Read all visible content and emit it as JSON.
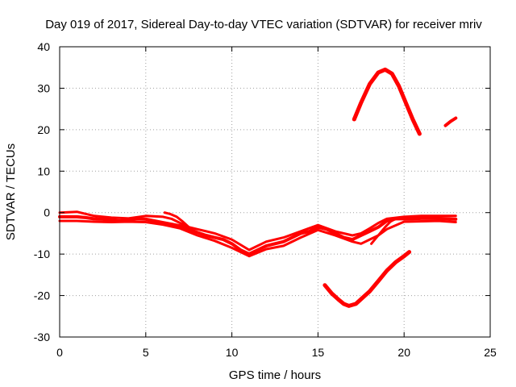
{
  "chart_data": {
    "type": "line",
    "title": "Day 019 of 2017, Sidereal Day-to-day VTEC variation (SDTVAR) for receiver mriv",
    "xlabel": "GPS time / hours",
    "ylabel": "SDTVAR / TECUs",
    "xlim": [
      0,
      25
    ],
    "ylim": [
      -30,
      40
    ],
    "xticks": [
      0,
      5,
      10,
      15,
      20,
      25
    ],
    "yticks": [
      -30,
      -20,
      -10,
      0,
      10,
      20,
      30,
      40
    ],
    "grid": true,
    "color": "#ff0000",
    "series": [
      {
        "name": "main-band",
        "thickness": 4,
        "x": [
          0.0,
          0.5,
          1.0,
          1.5,
          2.0,
          2.5,
          3.0,
          3.5,
          4.0,
          4.5,
          5.0,
          5.5,
          6.0,
          6.5,
          7.0,
          7.5,
          8.0,
          8.5,
          9.0,
          9.5,
          10.0,
          10.5,
          11.0,
          11.5,
          12.0,
          12.5,
          13.0,
          13.5,
          14.0,
          14.5,
          15.0,
          15.5,
          16.0,
          16.5,
          17.0,
          17.5,
          18.0,
          18.5,
          19.0,
          19.5,
          20.0,
          20.5,
          21.0,
          21.5,
          22.0,
          22.5,
          23.0
        ],
        "values": [
          -1.0,
          -1.0,
          -1.0,
          -1.2,
          -1.5,
          -1.6,
          -1.8,
          -2.0,
          -1.8,
          -1.5,
          -1.6,
          -2.0,
          -2.4,
          -2.8,
          -3.2,
          -4.0,
          -4.8,
          -5.5,
          -6.0,
          -6.5,
          -7.5,
          -9.0,
          -10.0,
          -9.0,
          -8.0,
          -7.5,
          -7.0,
          -6.0,
          -5.0,
          -4.5,
          -3.5,
          -4.0,
          -5.0,
          -6.0,
          -6.5,
          -5.5,
          -4.5,
          -3.5,
          -2.0,
          -1.5,
          -1.5,
          -1.5,
          -1.4,
          -1.4,
          -1.4,
          -1.5,
          -1.6
        ]
      },
      {
        "name": "band-upper-jitter",
        "thickness": 3,
        "x": [
          0.0,
          1.0,
          2.0,
          3.0,
          4.0,
          5.0,
          6.0,
          6.5,
          7.0,
          7.5,
          8.0,
          9.0,
          10.0,
          11.0,
          12.0,
          13.0,
          14.0,
          15.0,
          16.0,
          17.0,
          17.5,
          18.0,
          18.5,
          19.0,
          20.0,
          21.0,
          22.0,
          23.0
        ],
        "values": [
          0.0,
          0.2,
          -0.8,
          -1.2,
          -1.4,
          -0.8,
          -1.0,
          -1.5,
          -2.5,
          -3.5,
          -4.0,
          -5.0,
          -6.5,
          -9.0,
          -7.0,
          -6.0,
          -4.5,
          -3.0,
          -4.5,
          -5.5,
          -5.0,
          -3.8,
          -2.5,
          -1.5,
          -1.0,
          -0.8,
          -0.8,
          -0.8
        ]
      },
      {
        "name": "band-lower-jitter",
        "thickness": 3,
        "x": [
          0.0,
          1.0,
          2.0,
          3.0,
          4.0,
          5.0,
          6.0,
          7.0,
          8.0,
          9.0,
          10.0,
          11.0,
          12.0,
          13.0,
          14.0,
          15.0,
          16.0,
          17.0,
          17.5,
          18.0,
          18.5,
          19.0,
          20.0,
          21.0,
          22.0,
          23.0
        ],
        "values": [
          -2.0,
          -2.0,
          -2.2,
          -2.3,
          -2.2,
          -2.3,
          -2.9,
          -3.8,
          -5.5,
          -6.8,
          -8.5,
          -10.5,
          -8.8,
          -8.0,
          -6.0,
          -4.2,
          -5.5,
          -7.0,
          -7.5,
          -6.5,
          -5.5,
          -4.0,
          -2.2,
          -2.1,
          -2.0,
          -2.3
        ]
      },
      {
        "name": "spur-6h",
        "thickness": 3,
        "x": [
          6.1,
          6.4,
          6.8,
          7.1,
          7.5
        ],
        "values": [
          0.0,
          -0.3,
          -1.0,
          -2.0,
          -3.5
        ]
      },
      {
        "name": "spur-18h",
        "thickness": 3,
        "x": [
          18.1,
          18.3,
          18.6,
          18.9,
          19.2,
          19.5
        ],
        "values": [
          -7.5,
          -6.5,
          -5.0,
          -3.5,
          -2.2,
          -1.5
        ]
      },
      {
        "name": "upper-arc",
        "thickness": 5,
        "x": [
          17.1,
          17.5,
          18.0,
          18.5,
          18.9,
          19.3,
          19.7,
          20.1,
          20.5,
          20.9
        ],
        "values": [
          22.5,
          26.5,
          31.0,
          33.8,
          34.5,
          33.5,
          30.5,
          26.5,
          22.5,
          19.0
        ]
      },
      {
        "name": "lower-arc",
        "thickness": 5,
        "x": [
          15.4,
          15.8,
          16.2,
          16.5,
          16.8,
          17.2,
          17.6,
          18.0,
          18.5,
          19.0,
          19.5,
          20.0,
          20.3
        ],
        "values": [
          -17.5,
          -19.5,
          -21.0,
          -22.0,
          -22.5,
          -22.0,
          -20.5,
          -19.0,
          -16.5,
          -14.0,
          -12.0,
          -10.5,
          -9.5
        ]
      },
      {
        "name": "short-segment",
        "thickness": 4,
        "x": [
          22.4,
          22.7,
          23.0
        ],
        "values": [
          21.0,
          22.0,
          22.8
        ]
      }
    ]
  }
}
